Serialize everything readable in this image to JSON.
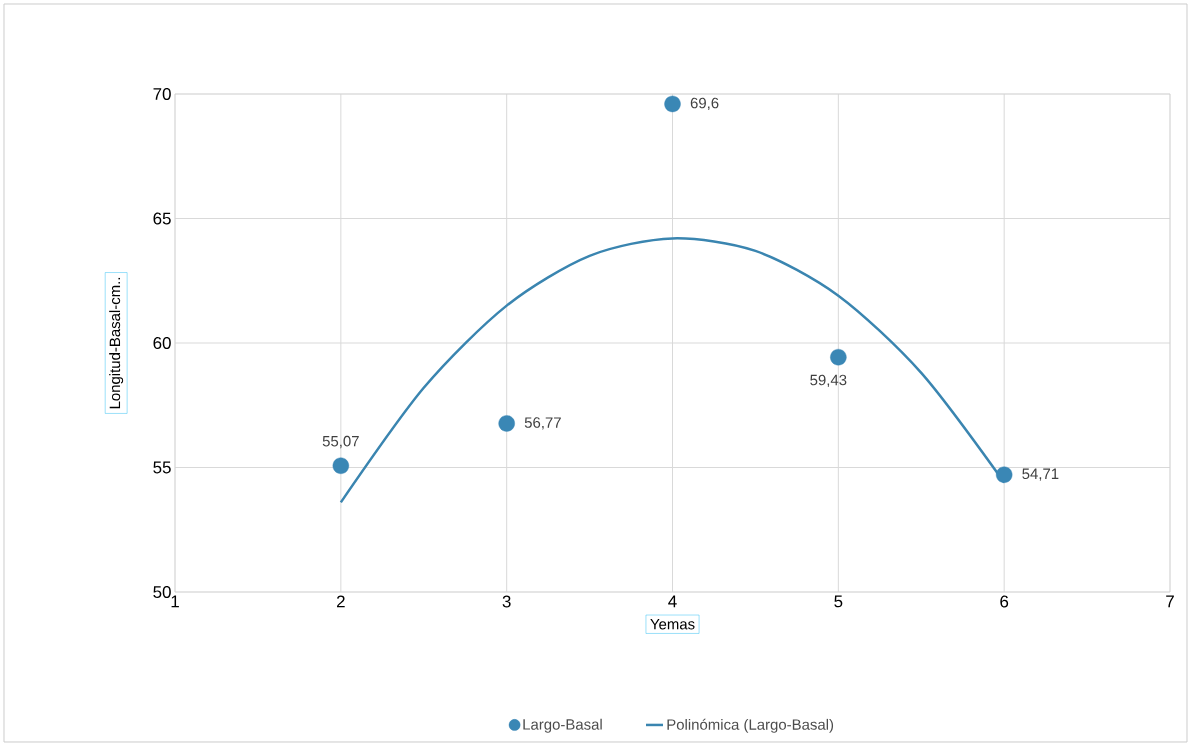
{
  "chart_data": {
    "type": "scatter",
    "xlabel": "Yemas",
    "ylabel": "Longitud-Basal-cm..",
    "series": [
      {
        "name": "Largo-Basal",
        "marker": "circle",
        "color": "#3a87b5",
        "x": [
          2,
          3,
          4,
          5,
          6
        ],
        "values": [
          55.07,
          56.77,
          69.6,
          59.43,
          54.71
        ],
        "value_labels": [
          "55,07",
          "56,77",
          "69,6",
          "59,43",
          "54,71"
        ]
      },
      {
        "name": "Polinómica (Largo-Basal)",
        "type": "line",
        "color": "#3a85b0",
        "x": [
          2,
          2.5,
          3,
          3.5,
          4,
          4.5,
          5,
          5.5,
          6
        ],
        "values": [
          53.6,
          58.2,
          61.5,
          63.5,
          64.2,
          63.7,
          61.9,
          58.8,
          54.4
        ]
      }
    ],
    "xlim": [
      1,
      7
    ],
    "xticks": [
      1,
      2,
      3,
      4,
      5,
      6,
      7
    ],
    "ylim": [
      50,
      70
    ],
    "yticks": [
      50,
      55,
      60,
      65,
      70
    ],
    "grid": true,
    "legend": "bottom",
    "line_style": "solid"
  }
}
